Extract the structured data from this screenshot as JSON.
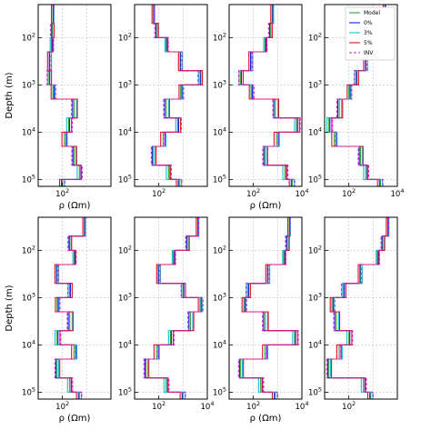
{
  "labels": {
    "ylabel": "Depth (m)",
    "xlabel": "ρ (Ωm)"
  },
  "chart_data": {
    "type": "line",
    "layout": "2 rows × 4 columns of resistivity-depth step profiles",
    "x_axis": "ρ (Ωm)",
    "y_axis": "Depth (m)",
    "x_scale": "log",
    "y_scale": "log (inverted, depth increases downward)",
    "xlim": [
      10,
      10000
    ],
    "ylim": [
      20,
      140000
    ],
    "y_tick_labels": [
      "10^2",
      "10^3",
      "10^4",
      "10^5"
    ],
    "grid": true,
    "legend": {
      "position": "top-right of last panel in first row",
      "entries": [
        "Model",
        "0%",
        "3%",
        "5%",
        "INV"
      ]
    },
    "series_colors": {
      "Model": "#2ca02c",
      "0%": "#1f1fdf",
      "3%": "#17becf",
      "5%": "#e0102d",
      "INV": "#d020d0"
    },
    "depth_nodes": [
      20,
      50,
      100,
      200,
      500,
      1000,
      2000,
      5000,
      10000,
      20000,
      50000,
      100000,
      140000
    ],
    "panels": [
      {
        "row": 0,
        "col": 0,
        "x_ticks_shown": [
          "10^2"
        ],
        "show_ylabel": true,
        "show_xlabel": true,
        "model_rho": [
          40,
          38,
          35,
          30,
          28,
          40,
          300,
          180,
          120,
          300,
          500,
          100,
          60
        ]
      },
      {
        "row": 0,
        "col": 1,
        "x_ticks_shown": [
          "10^2"
        ],
        "show_ylabel": false,
        "show_xlabel": false,
        "model_rho": [
          60,
          80,
          200,
          800,
          5000,
          800,
          200,
          600,
          150,
          60,
          250,
          700,
          900
        ]
      },
      {
        "row": 0,
        "col": 2,
        "x_ticks_shown": [
          "10^2",
          "10^4"
        ],
        "show_ylabel": false,
        "show_xlabel": true,
        "model_rho": [
          600,
          500,
          300,
          80,
          30,
          80,
          800,
          6000,
          900,
          300,
          2000,
          4000,
          5000
        ]
      },
      {
        "row": 0,
        "col": 3,
        "x_ticks_shown": [
          "10^2",
          "10^4"
        ],
        "show_ylabel": false,
        "show_xlabel": false,
        "model_rho": [
          3000,
          2500,
          1200,
          500,
          200,
          100,
          40,
          15,
          25,
          300,
          500,
          2000,
          5000
        ]
      },
      {
        "row": 1,
        "col": 0,
        "x_ticks_shown": [
          "10^2"
        ],
        "show_ylabel": true,
        "show_xlabel": true,
        "model_rho": [
          800,
          200,
          300,
          60,
          200,
          60,
          200,
          60,
          300,
          60,
          200,
          500,
          200
        ]
      },
      {
        "row": 1,
        "col": 1,
        "x_ticks_shown": [
          "10^2",
          "10^4"
        ],
        "show_ylabel": false,
        "show_xlabel": false,
        "model_rho": [
          4000,
          1500,
          400,
          100,
          1000,
          5000,
          2000,
          300,
          80,
          30,
          200,
          1000,
          4000
        ]
      },
      {
        "row": 1,
        "col": 2,
        "x_ticks_shown": [
          "10^2",
          "10^4"
        ],
        "show_ylabel": false,
        "show_xlabel": true,
        "model_rho": [
          3000,
          2500,
          1800,
          400,
          60,
          40,
          300,
          5000,
          300,
          30,
          200,
          800,
          400
        ]
      },
      {
        "row": 1,
        "col": 3,
        "x_ticks_shown": [
          "10^2"
        ],
        "show_ylabel": false,
        "show_xlabel": false,
        "model_rho": [
          4000,
          2500,
          1500,
          300,
          60,
          20,
          30,
          100,
          40,
          15,
          400,
          800,
          600
        ]
      }
    ]
  }
}
